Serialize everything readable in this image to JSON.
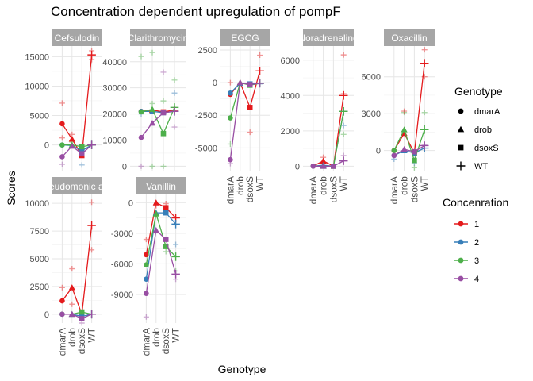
{
  "chart_data": {
    "type": "line",
    "title": "Concentration dependent upregulation of pompF",
    "xlabel": "Genotype",
    "ylabel": "Scores",
    "categories": [
      "dmarA",
      "drob",
      "dsoxS",
      "WT"
    ],
    "grid": true,
    "legend_shape": {
      "title": "Genotype",
      "entries": [
        {
          "label": "dmarA",
          "shape": "circle"
        },
        {
          "label": "drob",
          "shape": "triangle"
        },
        {
          "label": "dsoxS",
          "shape": "square"
        },
        {
          "label": "WT",
          "shape": "cross"
        }
      ]
    },
    "legend_color": {
      "title": "Concenration",
      "entries": [
        {
          "label": "1",
          "color": "#E41A1C"
        },
        {
          "label": "2",
          "color": "#377EB8"
        },
        {
          "label": "3",
          "color": "#4DAF4A"
        },
        {
          "label": "4",
          "color": "#984EA3"
        }
      ]
    },
    "panels": [
      {
        "strip": "Cefsulodin",
        "ylim": [
          -4500,
          16800
        ],
        "yticks": [
          0,
          5000,
          10000,
          15000
        ],
        "ytick_labels": [
          "0",
          "5000",
          "10000",
          "15000"
        ],
        "series": [
          {
            "name": "1",
            "values": [
              3600,
              1000,
              -1800,
              15300
            ]
          },
          {
            "name": "2",
            "values": [
              0,
              -100,
              -1000,
              0
            ]
          },
          {
            "name": "3",
            "values": [
              0,
              0,
              -300,
              0
            ]
          },
          {
            "name": "4",
            "values": [
              -2000,
              -200,
              -1500,
              0
            ]
          }
        ],
        "points": [
          [
            0,
            7100,
            0
          ],
          [
            0,
            1200,
            0
          ],
          [
            0,
            -3300,
            3
          ],
          [
            1,
            1800,
            0
          ],
          [
            1,
            500,
            2
          ],
          [
            2,
            -3400,
            1
          ],
          [
            2,
            -600,
            2
          ],
          [
            3,
            16000,
            0
          ],
          [
            3,
            14500,
            0
          ]
        ]
      },
      {
        "strip": "Clarithromycin",
        "ylim": [
          -2000,
          46000
        ],
        "yticks": [
          0,
          10000,
          20000,
          30000,
          40000
        ],
        "ytick_labels": [
          "0",
          "10000",
          "20000",
          "30000",
          "40000"
        ],
        "series": [
          {
            "name": "1",
            "values": [
              21000,
              21500,
              20800,
              21500
            ]
          },
          {
            "name": "2",
            "values": [
              21000,
              21000,
              20500,
              21000
            ]
          },
          {
            "name": "3",
            "values": [
              20800,
              21800,
              12500,
              22500
            ]
          },
          {
            "name": "4",
            "values": [
              11000,
              16500,
              20500,
              21000
            ]
          }
        ],
        "points": [
          [
            0,
            42000,
            2
          ],
          [
            0,
            0,
            3
          ],
          [
            0,
            20000,
            1
          ],
          [
            1,
            43500,
            2
          ],
          [
            1,
            0,
            2
          ],
          [
            1,
            24000,
            2
          ],
          [
            2,
            36000,
            3
          ],
          [
            2,
            0,
            2
          ],
          [
            2,
            25000,
            2
          ],
          [
            3,
            33000,
            2
          ],
          [
            3,
            28000,
            1
          ],
          [
            3,
            15000,
            3
          ]
        ]
      },
      {
        "strip": "EGCG",
        "ylim": [
          -6800,
          2800
        ],
        "yticks": [
          -5000,
          -2500,
          0,
          2500
        ],
        "ytick_labels": [
          "-5000",
          "-2500",
          "0",
          "2500"
        ],
        "series": [
          {
            "name": "1",
            "values": [
              -900,
              0,
              -1900,
              900
            ]
          },
          {
            "name": "2",
            "values": [
              -800,
              -50,
              -100,
              -50
            ]
          },
          {
            "name": "3",
            "values": [
              -2700,
              0,
              -200,
              -50
            ]
          },
          {
            "name": "4",
            "values": [
              -5900,
              0,
              -150,
              -50
            ]
          }
        ],
        "points": [
          [
            0,
            0,
            0
          ],
          [
            0,
            -4700,
            2
          ],
          [
            0,
            -6200,
            3
          ],
          [
            2,
            -3800,
            0
          ],
          [
            3,
            2100,
            0
          ],
          [
            3,
            -100,
            1
          ]
        ]
      },
      {
        "strip": "Noradrenaline",
        "ylim": [
          -300,
          6800
        ],
        "yticks": [
          0,
          2000,
          4000,
          6000
        ],
        "ytick_labels": [
          "0",
          "2000",
          "4000",
          "6000"
        ],
        "series": [
          {
            "name": "1",
            "values": [
              0,
              300,
              0,
              4000
            ]
          },
          {
            "name": "2",
            "values": [
              0,
              50,
              0,
              3100
            ]
          },
          {
            "name": "3",
            "values": [
              0,
              0,
              0,
              3100
            ]
          },
          {
            "name": "4",
            "values": [
              0,
              0,
              0,
              300
            ]
          }
        ],
        "points": [
          [
            1,
            500,
            0
          ],
          [
            3,
            6300,
            0
          ],
          [
            3,
            4100,
            0
          ],
          [
            3,
            2300,
            1
          ],
          [
            3,
            1800,
            2
          ],
          [
            3,
            600,
            3
          ]
        ]
      },
      {
        "strip": "Oxacillin",
        "ylim": [
          -1700,
          8500
        ],
        "yticks": [
          0,
          3000,
          6000
        ],
        "ytick_labels": [
          "0",
          "3000",
          "6000"
        ],
        "series": [
          {
            "name": "1",
            "values": [
              0,
              1400,
              -200,
              7100
            ]
          },
          {
            "name": "2",
            "values": [
              -400,
              0,
              -200,
              200
            ]
          },
          {
            "name": "3",
            "values": [
              0,
              1700,
              -800,
              1700
            ]
          },
          {
            "name": "4",
            "values": [
              -400,
              100,
              -100,
              400
            ]
          }
        ],
        "points": [
          [
            0,
            -700,
            1
          ],
          [
            1,
            3100,
            2
          ],
          [
            1,
            3200,
            0
          ],
          [
            2,
            -1400,
            2
          ],
          [
            2,
            -1000,
            1
          ],
          [
            3,
            8200,
            0
          ],
          [
            3,
            6000,
            0
          ],
          [
            3,
            3100,
            2
          ],
          [
            3,
            500,
            3
          ]
        ]
      },
      {
        "strip": "Pseudomonic acid",
        "ylim": [
          -800,
          10800
        ],
        "yticks": [
          0,
          2500,
          5000,
          7500,
          10000
        ],
        "ytick_labels": [
          "0",
          "2500",
          "5000",
          "7500",
          "10000"
        ],
        "series": [
          {
            "name": "1",
            "values": [
              1200,
              2400,
              0,
              8000
            ]
          },
          {
            "name": "2",
            "values": [
              0,
              0,
              -200,
              0
            ]
          },
          {
            "name": "3",
            "values": [
              0,
              0,
              200,
              0
            ]
          },
          {
            "name": "4",
            "values": [
              0,
              0,
              -400,
              0
            ]
          }
        ],
        "points": [
          [
            0,
            2400,
            0
          ],
          [
            1,
            4100,
            0
          ],
          [
            1,
            900,
            0
          ],
          [
            2,
            -800,
            3
          ],
          [
            3,
            10100,
            0
          ],
          [
            3,
            5800,
            0
          ]
        ]
      },
      {
        "strip": "Vanillin",
        "ylim": [
          -11800,
          800
        ],
        "yticks": [
          -9000,
          -6000,
          -3000,
          0
        ],
        "ytick_labels": [
          "-9000",
          "-6000",
          "-3000",
          "0"
        ],
        "series": [
          {
            "name": "1",
            "values": [
              -5100,
              0,
              -500,
              -1500
            ]
          },
          {
            "name": "2",
            "values": [
              -7500,
              -1000,
              -1000,
              -2100
            ]
          },
          {
            "name": "3",
            "values": [
              -6100,
              -1100,
              -4300,
              -5300
            ]
          },
          {
            "name": "4",
            "values": [
              -8900,
              -2700,
              -3600,
              -7000
            ]
          }
        ],
        "points": [
          [
            0,
            -11200,
            3
          ],
          [
            0,
            -3600,
            0
          ],
          [
            1,
            -300,
            0
          ],
          [
            2,
            -100,
            0
          ],
          [
            2,
            -4800,
            2
          ],
          [
            3,
            -4100,
            1
          ],
          [
            3,
            -6700,
            2
          ],
          [
            3,
            -7500,
            3
          ]
        ]
      }
    ]
  }
}
